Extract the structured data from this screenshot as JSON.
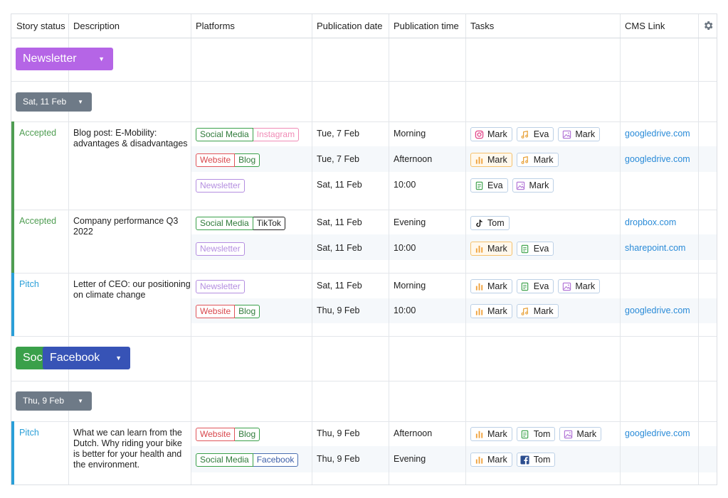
{
  "columns": [
    "Story status",
    "Description",
    "Platforms",
    "Publication date",
    "Publication time",
    "Tasks",
    "CMS Link"
  ],
  "groups": [
    {
      "label": "Newsletter",
      "color": "#b565e6"
    },
    {
      "label_partial": "Soc",
      "label_partial_color": "#3aa04a",
      "label": "Facebook",
      "color": "#3753b6"
    }
  ],
  "date_headers": [
    "Sat, 11 Feb",
    "Thu, 9 Feb"
  ],
  "stories": [
    {
      "status": "Accepted",
      "status_color": "#4f9d52",
      "description": "Blog post: E-Mobility: advantages & disadvantages",
      "entries": [
        {
          "platforms": [
            "Social Media",
            "Instagram"
          ],
          "date": "Tue, 7 Feb",
          "time": "Morning",
          "tasks": [
            {
              "icon": "instagram-icon",
              "name": "Mark"
            },
            {
              "icon": "audio-file-icon",
              "name": "Eva"
            },
            {
              "icon": "image-icon",
              "name": "Mark"
            }
          ],
          "cms": "googledrive.com"
        },
        {
          "platforms": [
            "Website",
            "Blog"
          ],
          "date": "Tue, 7 Feb",
          "time": "Afternoon",
          "tasks": [
            {
              "icon": "bar-chart-icon",
              "name": "Mark"
            },
            {
              "icon": "audio-file-icon",
              "name": "Mark"
            }
          ],
          "cms": "googledrive.com"
        },
        {
          "platforms": [
            "Newsletter"
          ],
          "date": "Sat, 11 Feb",
          "time": "10:00",
          "tasks": [
            {
              "icon": "document-icon",
              "name": "Eva"
            },
            {
              "icon": "image-icon",
              "name": "Mark"
            }
          ],
          "cms": ""
        }
      ]
    },
    {
      "status": "Accepted",
      "status_color": "#4f9d52",
      "description": "Company performance Q3 2022",
      "entries": [
        {
          "platforms": [
            "Social Media",
            "TikTok"
          ],
          "date": "Sat, 11 Feb",
          "time": "Evening",
          "tasks": [
            {
              "icon": "tiktok-icon",
              "name": "Tom"
            }
          ],
          "cms": "dropbox.com"
        },
        {
          "platforms": [
            "Newsletter"
          ],
          "date": "Sat, 11 Feb",
          "time": "10:00",
          "tasks": [
            {
              "icon": "bar-chart-icon",
              "name": "Mark"
            },
            {
              "icon": "document-icon",
              "name": "Eva"
            }
          ],
          "cms": "sharepoint.com"
        }
      ]
    },
    {
      "status": "Pitch",
      "status_color": "#2a9fd8",
      "description": "Letter of CEO: our positioning on climate change",
      "entries": [
        {
          "platforms": [
            "Newsletter"
          ],
          "date": "Sat, 11 Feb",
          "time": "Morning",
          "tasks": [
            {
              "icon": "bar-chart-icon",
              "name": "Mark"
            },
            {
              "icon": "document-icon",
              "name": "Eva"
            },
            {
              "icon": "image-icon",
              "name": "Mark"
            }
          ],
          "cms": ""
        },
        {
          "platforms": [
            "Website",
            "Blog"
          ],
          "date": "Thu, 9 Feb",
          "time": "10:00",
          "tasks": [
            {
              "icon": "bar-chart-icon",
              "name": "Mark"
            },
            {
              "icon": "audio-file-icon",
              "name": "Mark"
            }
          ],
          "cms": "googledrive.com"
        }
      ]
    },
    {
      "status": "Pitch",
      "status_color": "#2a9fd8",
      "description": "What we can learn from the Dutch. Why riding your bike is better for your health and the environment.",
      "entries": [
        {
          "platforms": [
            "Website",
            "Blog"
          ],
          "date": "Thu, 9 Feb",
          "time": "Afternoon",
          "tasks": [
            {
              "icon": "bar-chart-icon",
              "name": "Mark"
            },
            {
              "icon": "document-icon",
              "name": "Tom"
            },
            {
              "icon": "image-icon",
              "name": "Mark"
            }
          ],
          "cms": "googledrive.com"
        },
        {
          "platforms": [
            "Social Media",
            "Facebook"
          ],
          "date": "Thu, 9 Feb",
          "time": "Evening",
          "tasks": [
            {
              "icon": "bar-chart-icon",
              "name": "Mark"
            },
            {
              "icon": "facebook-icon",
              "name": "Tom"
            }
          ],
          "cms": ""
        }
      ]
    }
  ],
  "platform_colors": {
    "Social Media": "#3aa04a",
    "Instagram": "#f08bb6",
    "Website": "#e0555a",
    "Blog": "#3aa04a",
    "Newsletter": "#b48ee0",
    "TikTok": "#222222",
    "Facebook": "#4a6fb0"
  }
}
